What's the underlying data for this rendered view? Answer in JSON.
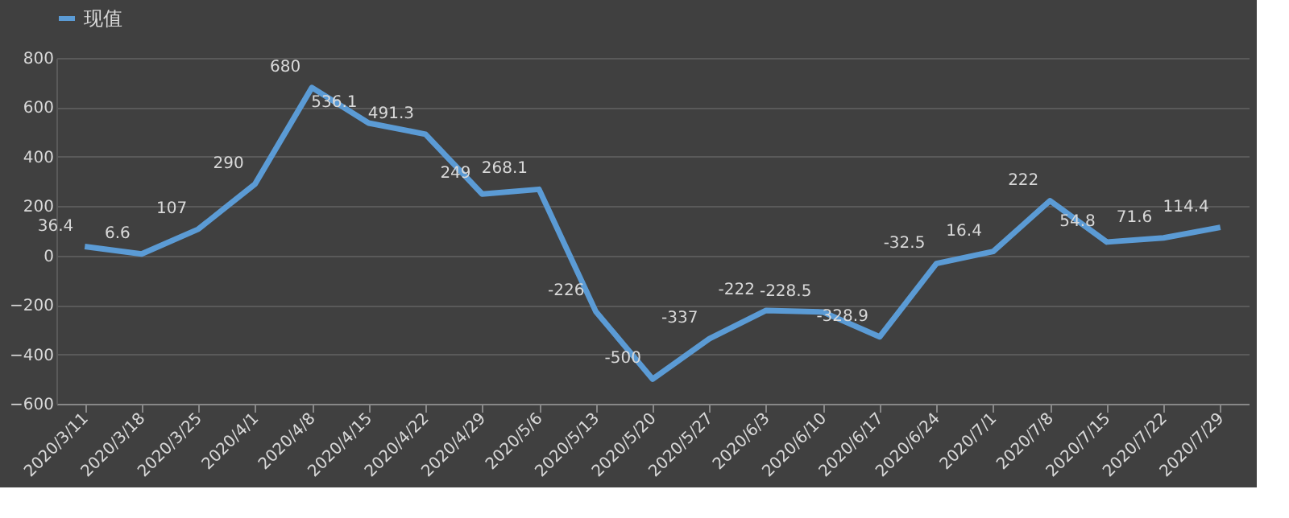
{
  "chart_data": {
    "type": "line",
    "categories": [
      "2020/3/11",
      "2020/3/18",
      "2020/3/25",
      "2020/4/1",
      "2020/4/8",
      "2020/4/15",
      "2020/4/22",
      "2020/4/29",
      "2020/5/6",
      "2020/5/13",
      "2020/5/20",
      "2020/5/27",
      "2020/6/3",
      "2020/6/10",
      "2020/6/17",
      "2020/6/24",
      "2020/7/1",
      "2020/7/8",
      "2020/7/15",
      "2020/7/22",
      "2020/7/29"
    ],
    "series": [
      {
        "name": "现值",
        "color": "#5b9bd5",
        "values": [
          36.4,
          6.6,
          107,
          290,
          680,
          536.1,
          491.3,
          249,
          268.1,
          -226,
          -500,
          -337,
          -222,
          -228.5,
          -328.9,
          -32.5,
          16.4,
          222,
          54.8,
          71.6,
          114.4
        ]
      }
    ],
    "ylim": [
      -600,
      800
    ],
    "yticks": [
      -600,
      -400,
      -200,
      0,
      200,
      400,
      600,
      800
    ],
    "grid": "y",
    "legend": "top",
    "data_labels": true,
    "marker": "none",
    "line_style": "solid"
  }
}
